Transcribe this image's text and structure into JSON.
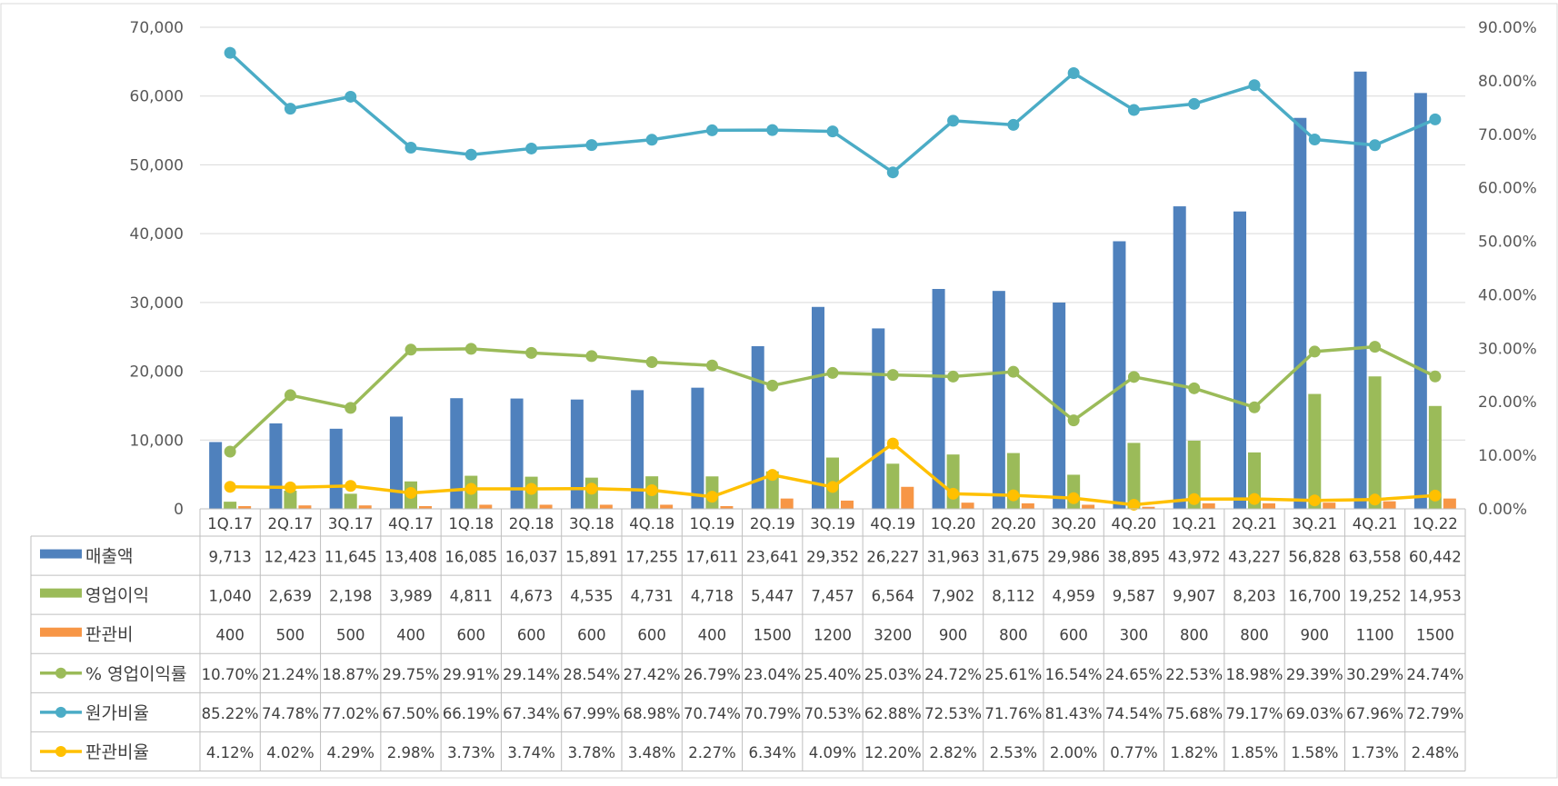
{
  "chart_data": {
    "type": "bar",
    "title": "",
    "categories": [
      "1Q.17",
      "2Q.17",
      "3Q.17",
      "4Q.17",
      "1Q.18",
      "2Q.18",
      "3Q.18",
      "4Q.18",
      "1Q.19",
      "2Q.19",
      "3Q.19",
      "4Q.19",
      "1Q.20",
      "2Q.20",
      "3Q.20",
      "4Q.20",
      "1Q.21",
      "2Q.21",
      "3Q.21",
      "4Q.21",
      "1Q.22"
    ],
    "y_left": {
      "ylim": [
        0,
        70000
      ],
      "ticks": [
        0,
        10000,
        20000,
        30000,
        40000,
        50000,
        60000,
        70000
      ],
      "tick_labels": [
        "0",
        "10,000",
        "20,000",
        "30,000",
        "40,000",
        "50,000",
        "60,000",
        "70,000"
      ]
    },
    "y_right": {
      "ylim": [
        0,
        0.9
      ],
      "ticks": [
        0,
        0.1,
        0.2,
        0.3,
        0.4,
        0.5,
        0.6,
        0.7,
        0.8,
        0.9
      ],
      "tick_labels": [
        "0.00%",
        "10.00%",
        "20.00%",
        "30.00%",
        "40.00%",
        "50.00%",
        "60.00%",
        "70.00%",
        "80.00%",
        "90.00%"
      ]
    },
    "grid": true,
    "legend": "data-table",
    "series": [
      {
        "name": "매출액",
        "type": "bar",
        "axis": "left",
        "color": "#4F81BD",
        "values": [
          9713,
          12423,
          11645,
          13408,
          16085,
          16037,
          15891,
          17255,
          17611,
          23641,
          29352,
          26227,
          31963,
          31675,
          29986,
          38895,
          43972,
          43227,
          56828,
          63558,
          60442
        ],
        "labels": [
          "9,713",
          "12,423",
          "11,645",
          "13,408",
          "16,085",
          "16,037",
          "15,891",
          "17,255",
          "17,611",
          "23,641",
          "29,352",
          "26,227",
          "31,963",
          "31,675",
          "29,986",
          "38,895",
          "43,972",
          "43,227",
          "56,828",
          "63,558",
          "60,442"
        ]
      },
      {
        "name": "영업이익",
        "type": "bar",
        "axis": "left",
        "color": "#9BBB59",
        "values": [
          1040,
          2639,
          2198,
          3989,
          4811,
          4673,
          4535,
          4731,
          4718,
          5447,
          7457,
          6564,
          7902,
          8112,
          4959,
          9587,
          9907,
          8203,
          16700,
          19252,
          14953
        ],
        "labels": [
          "1,040",
          "2,639",
          "2,198",
          "3,989",
          "4,811",
          "4,673",
          "4,535",
          "4,731",
          "4,718",
          "5,447",
          "7,457",
          "6,564",
          "7,902",
          "8,112",
          "4,959",
          "9,587",
          "9,907",
          "8,203",
          "16,700",
          "19,252",
          "14,953"
        ]
      },
      {
        "name": "판관비",
        "type": "bar",
        "axis": "left",
        "color": "#F79646",
        "values": [
          400,
          500,
          500,
          400,
          600,
          600,
          600,
          600,
          400,
          1500,
          1200,
          3200,
          900,
          800,
          600,
          300,
          800,
          800,
          900,
          1100,
          1500
        ],
        "labels": [
          "400",
          "500",
          "500",
          "400",
          "600",
          "600",
          "600",
          "600",
          "400",
          "1500",
          "1200",
          "3200",
          "900",
          "800",
          "600",
          "300",
          "800",
          "800",
          "900",
          "1100",
          "1500"
        ]
      },
      {
        "name": "% 영업이익률",
        "type": "line",
        "axis": "right",
        "color": "#9BBB59",
        "values": [
          0.107,
          0.2124,
          0.1887,
          0.2975,
          0.2991,
          0.2914,
          0.2854,
          0.2742,
          0.2679,
          0.2304,
          0.254,
          0.2503,
          0.2472,
          0.2561,
          0.1654,
          0.2465,
          0.2253,
          0.1898,
          0.2939,
          0.3029,
          0.2474
        ],
        "labels": [
          "10.70%",
          "21.24%",
          "18.87%",
          "29.75%",
          "29.91%",
          "29.14%",
          "28.54%",
          "27.42%",
          "26.79%",
          "23.04%",
          "25.40%",
          "25.03%",
          "24.72%",
          "25.61%",
          "16.54%",
          "24.65%",
          "22.53%",
          "18.98%",
          "29.39%",
          "30.29%",
          "24.74%"
        ]
      },
      {
        "name": "원가비율",
        "type": "line",
        "axis": "right",
        "color": "#4BACC6",
        "values": [
          0.8522,
          0.7478,
          0.7702,
          0.675,
          0.6619,
          0.6734,
          0.6799,
          0.6898,
          0.7074,
          0.7079,
          0.7053,
          0.6288,
          0.7253,
          0.7176,
          0.8143,
          0.7454,
          0.7568,
          0.7917,
          0.6903,
          0.6796,
          0.7279
        ],
        "labels": [
          "85.22%",
          "74.78%",
          "77.02%",
          "67.50%",
          "66.19%",
          "67.34%",
          "67.99%",
          "68.98%",
          "70.74%",
          "70.79%",
          "70.53%",
          "62.88%",
          "72.53%",
          "71.76%",
          "81.43%",
          "74.54%",
          "75.68%",
          "79.17%",
          "69.03%",
          "67.96%",
          "72.79%"
        ]
      },
      {
        "name": "판관비율",
        "type": "line",
        "axis": "right",
        "color": "#FFC000",
        "values": [
          0.0412,
          0.0402,
          0.0429,
          0.0298,
          0.0373,
          0.0374,
          0.0378,
          0.0348,
          0.0227,
          0.0634,
          0.0409,
          0.122,
          0.0282,
          0.0253,
          0.02,
          0.0077,
          0.0182,
          0.0185,
          0.0158,
          0.0173,
          0.0248
        ],
        "labels": [
          "4.12%",
          "4.02%",
          "4.29%",
          "2.98%",
          "3.73%",
          "3.74%",
          "3.78%",
          "3.48%",
          "2.27%",
          "6.34%",
          "4.09%",
          "12.20%",
          "2.82%",
          "2.53%",
          "2.00%",
          "0.77%",
          "1.82%",
          "1.85%",
          "1.58%",
          "1.73%",
          "2.48%"
        ]
      }
    ]
  }
}
